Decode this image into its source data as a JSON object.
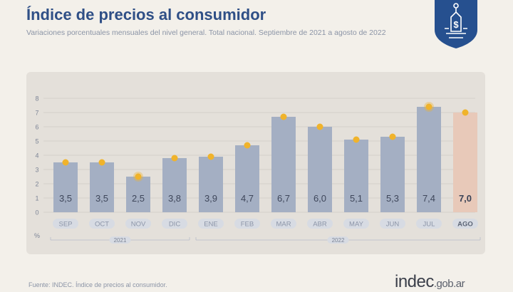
{
  "header": {
    "title": "Índice de precios al consumidor",
    "subtitle": "Variaciones porcentuales mensuales del nivel general. Total nacional. Septiembre de 2021 a agosto de 2022"
  },
  "badge": {
    "icon": "price-tag-dollar-icon",
    "color": "#26508f"
  },
  "colors": {
    "bar": "#a4afc3",
    "bar_highlight": "#e8c9b9",
    "dot": "#f0b32b",
    "grid": "#d0ccc6",
    "tick": "#a8b0c0",
    "pill": "#d7dbe3"
  },
  "chart_data": {
    "type": "bar",
    "categories": [
      "SEP",
      "OCT",
      "NOV",
      "DIC",
      "ENE",
      "FEB",
      "MAR",
      "ABR",
      "MAY",
      "JUN",
      "JUL",
      "AGO"
    ],
    "values": [
      3.5,
      3.5,
      2.5,
      3.8,
      3.9,
      4.7,
      6.7,
      6.0,
      5.1,
      5.3,
      7.4,
      7.0
    ],
    "value_labels": [
      "3,5",
      "3,5",
      "2,5",
      "3,8",
      "3,9",
      "4,7",
      "6,7",
      "6,0",
      "5,1",
      "5,3",
      "7,4",
      "7,0"
    ],
    "highlight_index": 11,
    "emphasized_points": [
      2,
      10
    ],
    "y_ticks": [
      "0",
      "1",
      "2",
      "3",
      "4",
      "5",
      "6",
      "7",
      "8"
    ],
    "ylim": [
      0,
      8
    ],
    "ylabel": "%",
    "year_groups": [
      {
        "label": "2021",
        "start": 0,
        "end": 3
      },
      {
        "label": "2022",
        "start": 4,
        "end": 11
      }
    ],
    "grid": true
  },
  "footer": {
    "source": "Fuente: INDEC. Índice de precios al consumidor.",
    "logo_main": "indec",
    "logo_suffix": ".gob.ar"
  }
}
